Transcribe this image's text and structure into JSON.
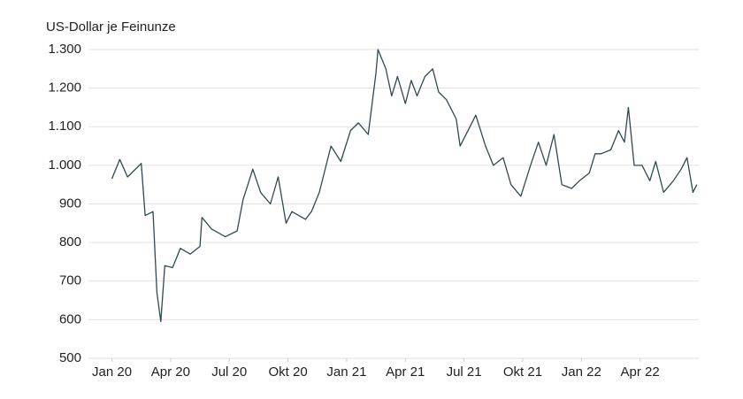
{
  "chart_data": {
    "type": "line",
    "y_axis_label": "US-Dollar je Feinunze",
    "x": [
      0,
      0.4,
      0.8,
      1.5,
      1.7,
      2.1,
      2.3,
      2.5,
      2.7,
      3.1,
      3.5,
      4.0,
      4.5,
      4.6,
      5.1,
      5.8,
      6.4,
      6.7,
      7.2,
      7.6,
      8.1,
      8.5,
      8.9,
      9.2,
      9.9,
      10.2,
      10.6,
      11.2,
      11.7,
      12.2,
      12.6,
      13.1,
      13.5,
      13.6,
      14.0,
      14.3,
      14.6,
      15.0,
      15.3,
      15.6,
      16.0,
      16.4,
      16.7,
      17.1,
      17.6,
      17.8,
      18.3,
      18.6,
      19.1,
      19.5,
      20.0,
      20.4,
      20.9,
      21.4,
      21.8,
      22.2,
      22.6,
      23.0,
      23.5,
      23.9,
      24.4,
      24.7,
      25.0,
      25.5,
      25.9,
      26.2,
      26.4,
      26.7,
      27.1,
      27.5,
      27.8,
      28.2,
      28.7,
      29.1,
      29.4,
      29.7,
      29.9
    ],
    "values": [
      965,
      1015,
      970,
      1005,
      870,
      880,
      670,
      595,
      740,
      735,
      785,
      770,
      790,
      865,
      835,
      815,
      830,
      910,
      990,
      930,
      900,
      970,
      850,
      880,
      860,
      880,
      930,
      1050,
      1010,
      1090,
      1110,
      1080,
      1240,
      1300,
      1250,
      1180,
      1230,
      1160,
      1220,
      1180,
      1230,
      1250,
      1190,
      1170,
      1120,
      1050,
      1100,
      1130,
      1050,
      1000,
      1020,
      950,
      920,
      1000,
      1060,
      1000,
      1080,
      950,
      940,
      960,
      980,
      1030,
      1030,
      1040,
      1090,
      1060,
      1150,
      1000,
      1000,
      960,
      1010,
      930,
      960,
      990,
      1020,
      930,
      950
    ],
    "color": "#2f4a4f",
    "xlim": [
      -1.2,
      30
    ],
    "xticks": [
      {
        "value": 0,
        "label": "Jan 20"
      },
      {
        "value": 3,
        "label": "Apr 20"
      },
      {
        "value": 6,
        "label": "Jul 20"
      },
      {
        "value": 9,
        "label": "Okt 20"
      },
      {
        "value": 12,
        "label": "Jan 21"
      },
      {
        "value": 15,
        "label": "Apr 21"
      },
      {
        "value": 18,
        "label": "Jul 21"
      },
      {
        "value": 21,
        "label": "Okt 21"
      },
      {
        "value": 24,
        "label": "Jan 22"
      },
      {
        "value": 27,
        "label": "Apr 22"
      }
    ],
    "ylim": [
      500,
      1300
    ],
    "yticks": [
      500,
      600,
      700,
      800,
      900,
      {
        "value": 1000,
        "label": "1.000"
      },
      {
        "value": 1100,
        "label": "1.100"
      },
      {
        "value": 1200,
        "label": "1.200"
      },
      {
        "value": 1300,
        "label": "1.300"
      }
    ],
    "grid": true
  }
}
